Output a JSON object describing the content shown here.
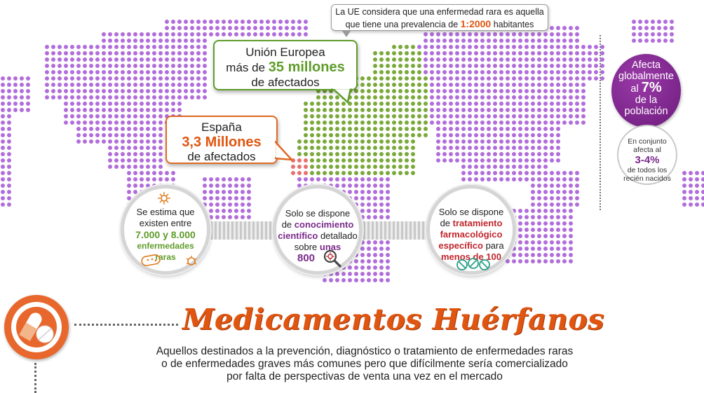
{
  "ue_tooltip": {
    "line1": "La UE considera que una enfermedad rara es aquella",
    "line2_pre": "que tiene una prevalencia de ",
    "line2_value": "1:2000",
    "line2_post": " habitantes"
  },
  "callout_ue": {
    "line1": "Unión Europea",
    "line2_pre": "más de ",
    "line2_value": "35 millones",
    "line3": "de afectados",
    "color": "#5f9c2a"
  },
  "callout_es": {
    "line1": "España",
    "line2": "3,3 Millones",
    "line3": "de afectados",
    "color": "#e05510"
  },
  "global_badge": {
    "line1": "Afecta",
    "line2": "globalmente",
    "line3_pre": "al ",
    "line3_value": "7%",
    "line4": "de la",
    "line5": "población",
    "color": "#7a2a8a"
  },
  "births_badge": {
    "line1": "En conjunto",
    "line2": "afecta al",
    "value": "3-4%",
    "line3": "de todos los",
    "line4": "recién nacidos"
  },
  "circle_diseases": {
    "line1": "Se estima que",
    "line2": "existen entre",
    "line3": "7.000 y 8.000",
    "line4": "enfermedades",
    "line5": "raras",
    "icons": [
      "virus-icon",
      "bacteria-icon",
      "microbe-icon"
    ]
  },
  "circle_knowledge": {
    "line1": "Solo se dispone",
    "line2_pre": "de ",
    "line2_hl": "conocimiento",
    "line3_hl": "científico",
    "line3_post": " detallado",
    "line4_pre": "sobre ",
    "line4_hl": "unas",
    "line5": "800",
    "icon": "magnifier-icon"
  },
  "circle_treatment": {
    "line1": "Solo se dispone",
    "line2_pre": "de ",
    "line2_hl": "tratamiento",
    "line3_hl": "farmacológico",
    "line4_hl": "específico",
    "line4_post": " para",
    "line5": "menos de 100",
    "icon": "pills-icon"
  },
  "section": {
    "title": "Medicamentos Huérfanos",
    "desc1": "Aquellos destinados a la prevención, diagnóstico o tratamiento de enfermedades raras",
    "desc2": "o de enfermedades graves más comunes pero que difícilmente sería comercializado",
    "desc3": "por falta de perspectivas de venta una vez en el mercado",
    "icon": "capsule-pill-icon"
  },
  "colors": {
    "purple_dots": "#b16ddb",
    "green_dots": "#7aa93a",
    "spain_dots": "#e87070",
    "orange": "#e05510"
  }
}
